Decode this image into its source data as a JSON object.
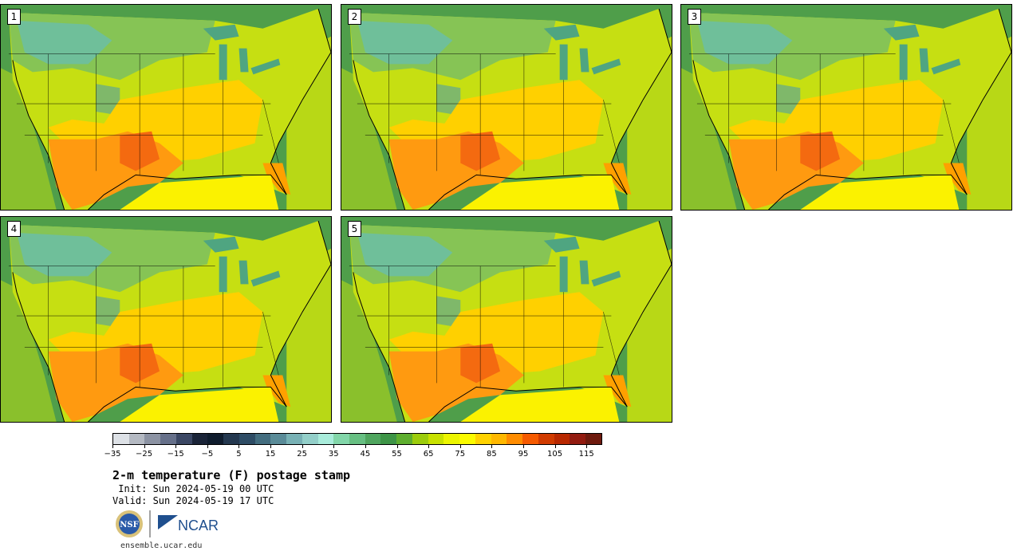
{
  "panels": [
    {
      "label": "1"
    },
    {
      "label": "2"
    },
    {
      "label": "3"
    },
    {
      "label": "4"
    },
    {
      "label": "5"
    }
  ],
  "colorbar": {
    "colors": [
      "#dde1e6",
      "#b4b9c2",
      "#8c93a3",
      "#66708a",
      "#3b4764",
      "#1a2438",
      "#0f1c2d",
      "#24384f",
      "#2e4c65",
      "#436d7f",
      "#5a8b98",
      "#78b1b5",
      "#93cfc9",
      "#a9ecdb",
      "#82d6a9",
      "#67bf82",
      "#4fa55e",
      "#3d9446",
      "#5eae2f",
      "#9ccc0c",
      "#c8e100",
      "#ecf500",
      "#fbfb00",
      "#ffd200",
      "#ffb800",
      "#ff8c00",
      "#f55a00",
      "#d13b00",
      "#b82800",
      "#921b10",
      "#6e1a0e"
    ],
    "tick_labels": [
      "−35",
      "−25",
      "−15",
      "−5",
      "5",
      "15",
      "25",
      "35",
      "45",
      "55",
      "65",
      "75",
      "85",
      "95",
      "105",
      "115"
    ]
  },
  "title": "2-m temperature (F) postage stamp",
  "init_line": " Init: Sun 2024-05-19 00 UTC",
  "valid_line": "Valid: Sun 2024-05-19 17 UTC",
  "logos": {
    "nsf": "NSF",
    "ncar": "NCAR"
  },
  "url": "ensemble.ucar.edu"
}
